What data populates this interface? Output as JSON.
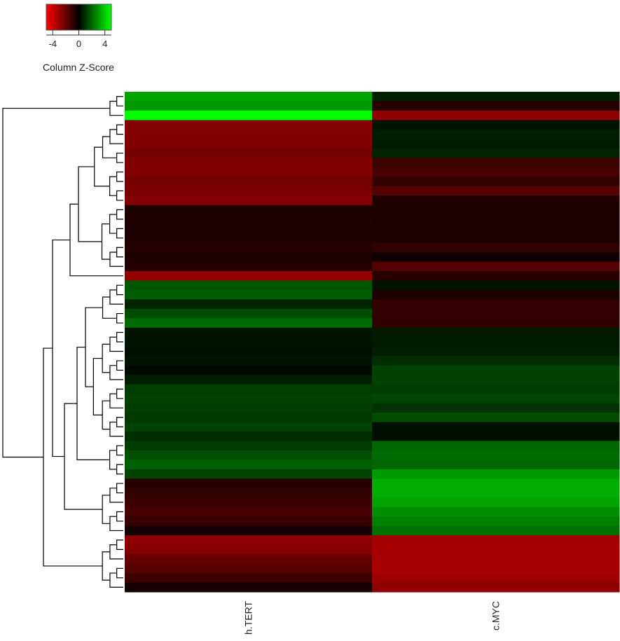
{
  "chart_data": {
    "type": "heatmap",
    "title": "",
    "columns": [
      "h.TERT",
      "c.MYC"
    ],
    "color_key": {
      "title": "Column Z-Score",
      "ticks": [
        "-4",
        "0",
        "4"
      ],
      "range": [
        -5,
        5
      ],
      "colors": {
        "low": "#ff0000",
        "mid": "#000000",
        "high": "#00ff00"
      }
    },
    "z_values": [
      [
        3.2,
        0.6
      ],
      [
        3.0,
        -0.7
      ],
      [
        5.0,
        -2.8
      ],
      [
        -2.6,
        0.4
      ],
      [
        -2.6,
        0.6
      ],
      [
        -2.5,
        0.5
      ],
      [
        -2.3,
        0.7
      ],
      [
        -2.5,
        -1.2
      ],
      [
        -2.5,
        -1.4
      ],
      [
        -2.3,
        -1.0
      ],
      [
        -2.4,
        -1.6
      ],
      [
        -2.6,
        -0.6
      ],
      [
        -0.6,
        -0.6
      ],
      [
        -0.6,
        -0.5
      ],
      [
        -0.5,
        -0.5
      ],
      [
        -0.6,
        -0.6
      ],
      [
        -0.7,
        -1.0
      ],
      [
        -0.6,
        -0.3
      ],
      [
        -0.7,
        -1.6
      ],
      [
        -2.9,
        -0.8
      ],
      [
        1.7,
        0.4
      ],
      [
        1.8,
        -0.6
      ],
      [
        0.7,
        -1.0
      ],
      [
        1.5,
        -1.0
      ],
      [
        2.1,
        -0.9
      ],
      [
        0.4,
        0.5
      ],
      [
        0.4,
        0.5
      ],
      [
        0.3,
        0.6
      ],
      [
        0.4,
        0.9
      ],
      [
        0.2,
        1.3
      ],
      [
        0.6,
        1.3
      ],
      [
        1.2,
        1.2
      ],
      [
        1.3,
        1.4
      ],
      [
        1.2,
        1.0
      ],
      [
        1.1,
        1.5
      ],
      [
        1.3,
        0.3
      ],
      [
        0.9,
        0.3
      ],
      [
        1.2,
        2.0
      ],
      [
        1.6,
        2.1
      ],
      [
        1.9,
        2.0
      ],
      [
        1.3,
        3.0
      ],
      [
        -0.7,
        3.4
      ],
      [
        -1.0,
        3.4
      ],
      [
        -1.2,
        3.2
      ],
      [
        -1.4,
        2.8
      ],
      [
        -1.1,
        2.5
      ],
      [
        -0.4,
        2.2
      ],
      [
        -2.8,
        -3.2
      ],
      [
        -2.6,
        -3.3
      ],
      [
        -2.0,
        -3.3
      ],
      [
        -1.7,
        -3.3
      ],
      [
        -1.2,
        -3.1
      ],
      [
        -0.4,
        -2.8
      ]
    ]
  }
}
